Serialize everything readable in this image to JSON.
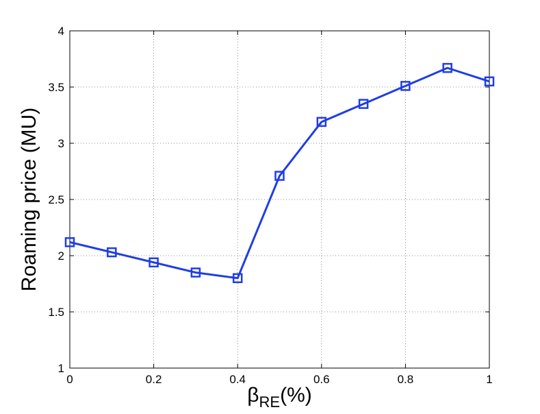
{
  "chart_data": {
    "type": "line",
    "title": "",
    "xlabel_main": "β",
    "xlabel_sub": "RE",
    "xlabel_suffix": "(%)",
    "ylabel": "Roaming price (MU)",
    "xlim": [
      0,
      1
    ],
    "ylim": [
      1,
      4
    ],
    "xticks": [
      0,
      0.2,
      0.4,
      0.6,
      0.8,
      1
    ],
    "xtick_labels": [
      "0",
      "0.2",
      "0.4",
      "0.6",
      "0.8",
      "1"
    ],
    "yticks": [
      1,
      1.5,
      2,
      2.5,
      3,
      3.5,
      4
    ],
    "ytick_labels": [
      "1",
      "1.5",
      "2",
      "2.5",
      "3",
      "3.5",
      "4"
    ],
    "grid": true,
    "series": [
      {
        "color": "#1f3de6",
        "marker": "square",
        "x": [
          0,
          0.1,
          0.2,
          0.3,
          0.4,
          0.5,
          0.6,
          0.7,
          0.8,
          0.9,
          1.0
        ],
        "y": [
          2.12,
          2.03,
          1.94,
          1.85,
          1.8,
          2.71,
          3.19,
          3.35,
          3.51,
          3.67,
          3.55
        ]
      }
    ]
  }
}
